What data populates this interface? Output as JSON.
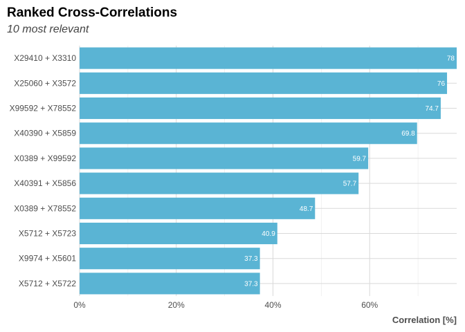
{
  "chart_data": {
    "type": "bar",
    "orientation": "horizontal",
    "title": "Ranked Cross-Correlations",
    "subtitle": "10 most relevant",
    "xlabel": "Correlation [%]",
    "ylabel": "",
    "xlim": [
      0,
      78
    ],
    "x_ticks": [
      "0%",
      "20%",
      "40%",
      "60%"
    ],
    "x_tick_values": [
      0,
      20,
      40,
      60
    ],
    "grid": true,
    "bar_color": "#5ab4d4",
    "categories": [
      "X29410 + X3310",
      "X25060 + X3572",
      "X99592 + X78552",
      "X40390 + X5859",
      "X0389 + X99592",
      "X40391 + X5856",
      "X0389 + X78552",
      "X5712 + X5723",
      "X9974 + X5601",
      "X5712 + X5722"
    ],
    "values": [
      78,
      76,
      74.7,
      69.8,
      59.7,
      57.7,
      48.7,
      40.9,
      37.3,
      37.3
    ],
    "value_labels": [
      "78",
      "76",
      "74.7",
      "69.8",
      "59.7",
      "57.7",
      "48.7",
      "40.9",
      "37.3",
      "37.3"
    ]
  }
}
